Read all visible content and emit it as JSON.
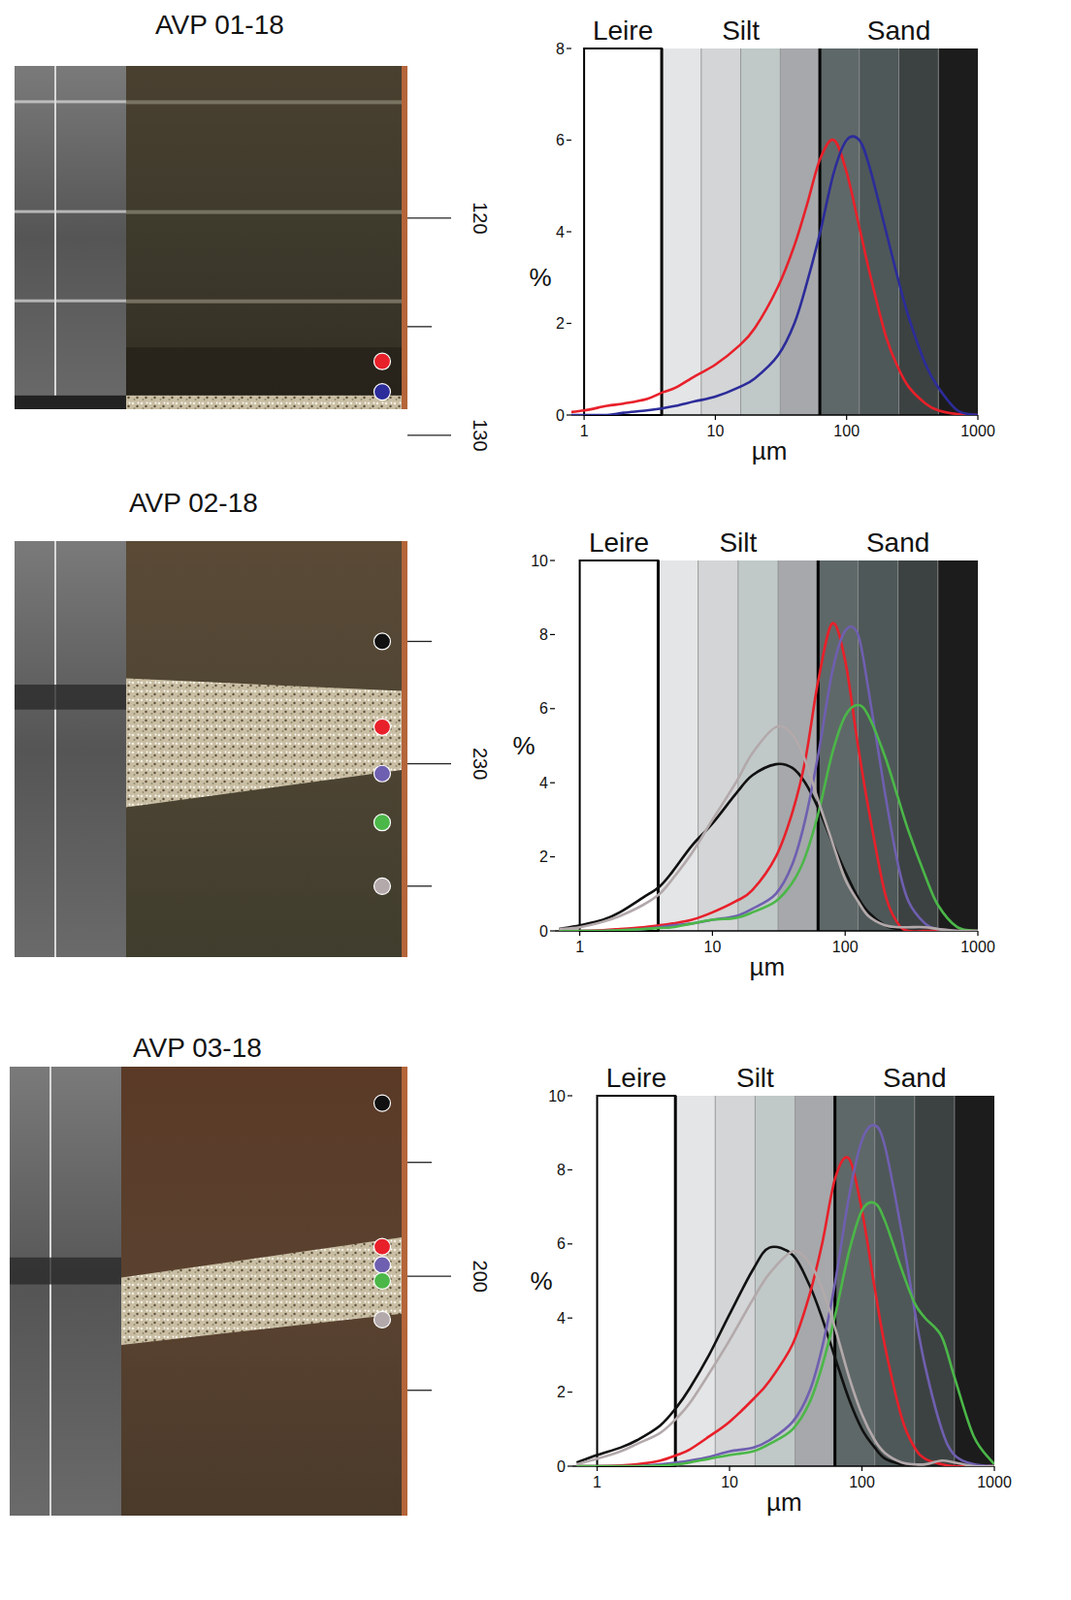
{
  "chart_data": [
    {
      "type": "line",
      "title": "AVP 01-18",
      "log": "x",
      "x": [
        0.7,
        1,
        1.5,
        2,
        3,
        4,
        5,
        7,
        10,
        15,
        20,
        30,
        40,
        50,
        63,
        80,
        100,
        125,
        150,
        200,
        250,
        300,
        400,
        500,
        700,
        1000
      ],
      "xlim": [
        0.8,
        1000
      ],
      "xticks": [
        1,
        10,
        100,
        1000
      ],
      "ylim": [
        0,
        8
      ],
      "yticks": [
        0,
        2,
        4,
        6,
        8
      ],
      "x_label": "µm",
      "y_label": "%",
      "class_labels": [
        "Leire",
        "Silt",
        "Sand"
      ],
      "class_bands": [
        1,
        4,
        4
      ],
      "class_boundaries": [
        1,
        3.9,
        7.8,
        15.6,
        31.25,
        62.5,
        125,
        250,
        500,
        1000
      ],
      "class_colors": [
        "#ffffff",
        "#e4e5e6",
        "#d3d5d6",
        "#c0c9c8",
        "#a6a8ab",
        "#5f6868",
        "#4e5858",
        "#3c4242",
        "#1c1c1c"
      ],
      "core": {
        "depth_lim": [
          113,
          128.8
        ],
        "depth_ticks": [
          120,
          {
            "value": 125
          },
          130
        ]
      },
      "series": [
        {
          "color": "#e8202a",
          "depth": 126.6,
          "values": [
            0.05,
            0.1,
            0.2,
            0.25,
            0.35,
            0.5,
            0.6,
            0.85,
            1.1,
            1.5,
            1.9,
            2.8,
            3.7,
            4.6,
            5.6,
            6.0,
            5.3,
            4.1,
            3.1,
            1.7,
            1.0,
            0.6,
            0.25,
            0.1,
            0.02,
            0
          ]
        },
        {
          "color": "#2c2c9a",
          "depth": 128.0,
          "values": [
            0,
            0,
            0,
            0.05,
            0.1,
            0.15,
            0.2,
            0.3,
            0.4,
            0.6,
            0.8,
            1.3,
            2.0,
            2.9,
            4.0,
            5.3,
            6.0,
            6.0,
            5.4,
            4.0,
            2.9,
            2.1,
            1.1,
            0.6,
            0.1,
            0
          ]
        }
      ]
    },
    {
      "type": "line",
      "title": "AVP 02-18",
      "log": "x",
      "x": [
        0.7,
        1,
        1.5,
        2,
        3,
        4,
        5,
        7,
        10,
        15,
        20,
        30,
        40,
        50,
        63,
        80,
        100,
        125,
        150,
        200,
        250,
        300,
        400,
        500,
        700,
        1000
      ],
      "xlim": [
        0.65,
        1000
      ],
      "xticks": [
        1,
        10,
        100,
        1000
      ],
      "ylim": [
        0,
        10
      ],
      "yticks": [
        0,
        2,
        4,
        6,
        8,
        10
      ],
      "x_label": "µm",
      "y_label": "%",
      "class_labels": [
        "Leire",
        "Silt",
        "Sand"
      ],
      "class_bands": [
        1,
        4,
        4
      ],
      "class_boundaries": [
        1,
        3.9,
        7.8,
        15.6,
        31.25,
        62.5,
        125,
        250,
        500,
        1000
      ],
      "class_colors": [
        "#ffffff",
        "#e4e5e6",
        "#d3d5d6",
        "#c0c9c8",
        "#a6a8ab",
        "#5f6868",
        "#4e5858",
        "#3c4242",
        "#1c1c1c"
      ],
      "core": {
        "depth_lim": [
          220.9,
          237.9
        ],
        "depth_ticks": [
          {
            "value": 225
          },
          230,
          {
            "value": 235
          }
        ]
      },
      "series": [
        {
          "color": "#111111",
          "depth": 225.0,
          "values": [
            0.05,
            0.15,
            0.3,
            0.5,
            0.9,
            1.2,
            1.6,
            2.3,
            2.9,
            3.7,
            4.2,
            4.5,
            4.4,
            4.0,
            3.3,
            2.4,
            1.6,
            0.9,
            0.5,
            0.15,
            0.05,
            0,
            0,
            0,
            0,
            0
          ]
        },
        {
          "color": "#e8202a",
          "depth": 228.5,
          "values": [
            0,
            0,
            0.02,
            0.05,
            0.1,
            0.15,
            0.2,
            0.3,
            0.5,
            0.8,
            1.1,
            2.0,
            3.2,
            4.6,
            6.8,
            8.3,
            7.3,
            5.0,
            3.3,
            1.0,
            0.2,
            0,
            0,
            0,
            0,
            0
          ]
        },
        {
          "color": "#6f5fb0",
          "depth": 230.4,
          "values": [
            0,
            0,
            0,
            0.02,
            0.05,
            0.1,
            0.15,
            0.2,
            0.3,
            0.4,
            0.6,
            1.0,
            1.8,
            3.0,
            4.8,
            7.0,
            8.1,
            8.0,
            6.5,
            3.7,
            1.8,
            0.8,
            0.2,
            0.05,
            0,
            0
          ]
        },
        {
          "color": "#4bb748",
          "depth": 232.4,
          "values": [
            0,
            0,
            0,
            0.02,
            0.05,
            0.08,
            0.1,
            0.2,
            0.3,
            0.35,
            0.5,
            0.8,
            1.3,
            2.0,
            3.2,
            4.8,
            5.8,
            6.1,
            5.8,
            4.7,
            3.6,
            2.7,
            1.5,
            0.7,
            0.1,
            0
          ]
        },
        {
          "color": "#b3a9ab",
          "depth": 235.0,
          "values": [
            0.05,
            0.1,
            0.25,
            0.4,
            0.7,
            1.0,
            1.4,
            2.1,
            3.0,
            4.0,
            4.8,
            5.5,
            5.3,
            4.6,
            3.5,
            2.4,
            1.4,
            0.8,
            0.4,
            0.15,
            0.1,
            0.1,
            0.1,
            0.05,
            0,
            0
          ]
        }
      ]
    },
    {
      "type": "line",
      "title": "AVP 03-18",
      "log": "x",
      "x": [
        0.7,
        1,
        1.5,
        2,
        3,
        4,
        5,
        7,
        10,
        15,
        20,
        30,
        40,
        50,
        63,
        80,
        100,
        125,
        150,
        200,
        250,
        300,
        400,
        500,
        700,
        1000
      ],
      "xlim": [
        0.65,
        1000
      ],
      "xticks": [
        1,
        10,
        100,
        1000
      ],
      "ylim": [
        0,
        10
      ],
      "yticks": [
        0,
        2,
        4,
        6,
        8,
        10
      ],
      "x_label": "µm",
      "y_label": "%",
      "class_labels": [
        "Leire",
        "Silt",
        "Sand"
      ],
      "class_bands": [
        1,
        4,
        4
      ],
      "class_boundaries": [
        1,
        3.9,
        7.8,
        15.6,
        31.25,
        62.5,
        125,
        250,
        500,
        1000
      ],
      "class_colors": [
        "#ffffff",
        "#e4e5e6",
        "#d3d5d6",
        "#c0c9c8",
        "#a6a8ab",
        "#5f6868",
        "#4e5858",
        "#3c4242",
        "#1c1c1c"
      ],
      "core": {
        "depth_lim": [
          190.8,
          210.5
        ],
        "depth_ticks": [
          {
            "value": 195
          },
          200,
          {
            "value": 205
          }
        ]
      },
      "series": [
        {
          "color": "#111111",
          "depth": 192.4,
          "values": [
            0.1,
            0.3,
            0.5,
            0.7,
            1.1,
            1.6,
            2.1,
            3.0,
            4.1,
            5.3,
            5.9,
            5.7,
            4.9,
            4.0,
            2.9,
            1.8,
            1.0,
            0.5,
            0.2,
            0.05,
            0,
            0,
            0,
            0,
            0,
            0
          ]
        },
        {
          "color": "#e8202a",
          "depth": 198.7,
          "values": [
            0,
            0,
            0.02,
            0.05,
            0.15,
            0.3,
            0.45,
            0.8,
            1.2,
            1.8,
            2.3,
            3.3,
            4.6,
            6.0,
            7.8,
            8.3,
            6.9,
            4.8,
            3.2,
            1.3,
            0.5,
            0.2,
            0.05,
            0,
            0,
            0
          ]
        },
        {
          "color": "#6f5fb0",
          "depth": 199.5,
          "values": [
            0,
            0,
            0,
            0,
            0.05,
            0.1,
            0.15,
            0.25,
            0.4,
            0.5,
            0.7,
            1.2,
            2.0,
            3.2,
            5.0,
            7.3,
            8.8,
            9.2,
            8.6,
            6.3,
            4.2,
            2.7,
            1.0,
            0.3,
            0.05,
            0
          ]
        },
        {
          "color": "#4bb748",
          "depth": 200.2,
          "values": [
            0,
            0,
            0,
            0,
            0.02,
            0.05,
            0.1,
            0.2,
            0.3,
            0.4,
            0.6,
            1.0,
            1.7,
            2.7,
            4.1,
            5.8,
            6.9,
            7.1,
            6.6,
            5.3,
            4.4,
            4.0,
            3.5,
            2.4,
            0.8,
            0.05
          ]
        },
        {
          "color": "#b3a9ab",
          "depth": 201.9,
          "values": [
            0.05,
            0.2,
            0.4,
            0.6,
            0.9,
            1.3,
            1.7,
            2.5,
            3.4,
            4.5,
            5.2,
            5.8,
            5.5,
            4.8,
            3.7,
            2.4,
            1.4,
            0.7,
            0.35,
            0.1,
            0.05,
            0.05,
            0.15,
            0.1,
            0,
            0
          ]
        }
      ]
    }
  ]
}
